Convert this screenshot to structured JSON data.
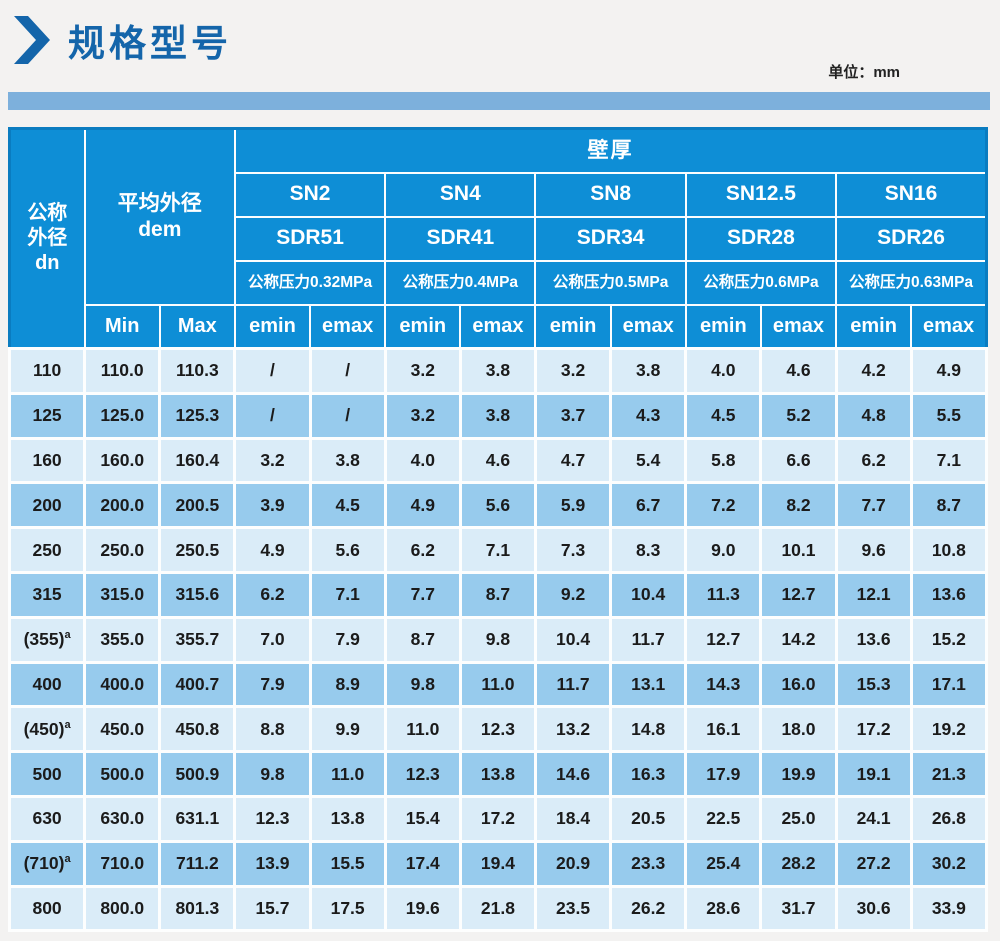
{
  "page": {
    "title": "规格型号",
    "unit_label": "单位：mm"
  },
  "table": {
    "header": {
      "dn_lines": [
        "公称",
        "外径",
        "dn"
      ],
      "dem_line1": "平均外径",
      "dem_line2": "dem",
      "wall_thickness": "壁厚",
      "min": "Min",
      "max": "Max",
      "emin": "emin",
      "emax": "emax",
      "groups": [
        {
          "sn": "SN2",
          "sdr": "SDR51",
          "pressure": "公称压力0.32MPa"
        },
        {
          "sn": "SN4",
          "sdr": "SDR41",
          "pressure": "公称压力0.4MPa"
        },
        {
          "sn": "SN8",
          "sdr": "SDR34",
          "pressure": "公称压力0.5MPa"
        },
        {
          "sn": "SN12.5",
          "sdr": "SDR28",
          "pressure": "公称压力0.6MPa"
        },
        {
          "sn": "SN16",
          "sdr": "SDR26",
          "pressure": "公称压力0.63MPa"
        }
      ]
    },
    "rows": [
      {
        "dn": "110",
        "sup": "",
        "min": "110.0",
        "max": "110.3",
        "values": [
          "/",
          "/",
          "3.2",
          "3.8",
          "3.2",
          "3.8",
          "4.0",
          "4.6",
          "4.2",
          "4.9"
        ]
      },
      {
        "dn": "125",
        "sup": "",
        "min": "125.0",
        "max": "125.3",
        "values": [
          "/",
          "/",
          "3.2",
          "3.8",
          "3.7",
          "4.3",
          "4.5",
          "5.2",
          "4.8",
          "5.5"
        ]
      },
      {
        "dn": "160",
        "sup": "",
        "min": "160.0",
        "max": "160.4",
        "values": [
          "3.2",
          "3.8",
          "4.0",
          "4.6",
          "4.7",
          "5.4",
          "5.8",
          "6.6",
          "6.2",
          "7.1"
        ]
      },
      {
        "dn": "200",
        "sup": "",
        "min": "200.0",
        "max": "200.5",
        "values": [
          "3.9",
          "4.5",
          "4.9",
          "5.6",
          "5.9",
          "6.7",
          "7.2",
          "8.2",
          "7.7",
          "8.7"
        ]
      },
      {
        "dn": "250",
        "sup": "",
        "min": "250.0",
        "max": "250.5",
        "values": [
          "4.9",
          "5.6",
          "6.2",
          "7.1",
          "7.3",
          "8.3",
          "9.0",
          "10.1",
          "9.6",
          "10.8"
        ]
      },
      {
        "dn": "315",
        "sup": "",
        "min": "315.0",
        "max": "315.6",
        "values": [
          "6.2",
          "7.1",
          "7.7",
          "8.7",
          "9.2",
          "10.4",
          "11.3",
          "12.7",
          "12.1",
          "13.6"
        ]
      },
      {
        "dn": "(355)",
        "sup": "a",
        "min": "355.0",
        "max": "355.7",
        "values": [
          "7.0",
          "7.9",
          "8.7",
          "9.8",
          "10.4",
          "11.7",
          "12.7",
          "14.2",
          "13.6",
          "15.2"
        ]
      },
      {
        "dn": "400",
        "sup": "",
        "min": "400.0",
        "max": "400.7",
        "values": [
          "7.9",
          "8.9",
          "9.8",
          "11.0",
          "11.7",
          "13.1",
          "14.3",
          "16.0",
          "15.3",
          "17.1"
        ]
      },
      {
        "dn": "(450)",
        "sup": "a",
        "min": "450.0",
        "max": "450.8",
        "values": [
          "8.8",
          "9.9",
          "11.0",
          "12.3",
          "13.2",
          "14.8",
          "16.1",
          "18.0",
          "17.2",
          "19.2"
        ]
      },
      {
        "dn": "500",
        "sup": "",
        "min": "500.0",
        "max": "500.9",
        "values": [
          "9.8",
          "11.0",
          "12.3",
          "13.8",
          "14.6",
          "16.3",
          "17.9",
          "19.9",
          "19.1",
          "21.3"
        ]
      },
      {
        "dn": "630",
        "sup": "",
        "min": "630.0",
        "max": "631.1",
        "values": [
          "12.3",
          "13.8",
          "15.4",
          "17.2",
          "18.4",
          "20.5",
          "22.5",
          "25.0",
          "24.1",
          "26.8"
        ]
      },
      {
        "dn": "(710)",
        "sup": "a",
        "min": "710.0",
        "max": "711.2",
        "values": [
          "13.9",
          "15.5",
          "17.4",
          "19.4",
          "20.9",
          "23.3",
          "25.4",
          "28.2",
          "27.2",
          "30.2"
        ]
      },
      {
        "dn": "800",
        "sup": "",
        "min": "800.0",
        "max": "801.3",
        "values": [
          "15.7",
          "17.5",
          "19.6",
          "21.8",
          "23.5",
          "26.2",
          "28.6",
          "31.7",
          "30.6",
          "33.9"
        ]
      }
    ]
  },
  "colors": {
    "title_blue": "#1465aa",
    "band_blue": "#7db0dc",
    "header_blue": "#0e8ed6",
    "row_light": "#daecf8",
    "row_dark": "#97cbed"
  }
}
